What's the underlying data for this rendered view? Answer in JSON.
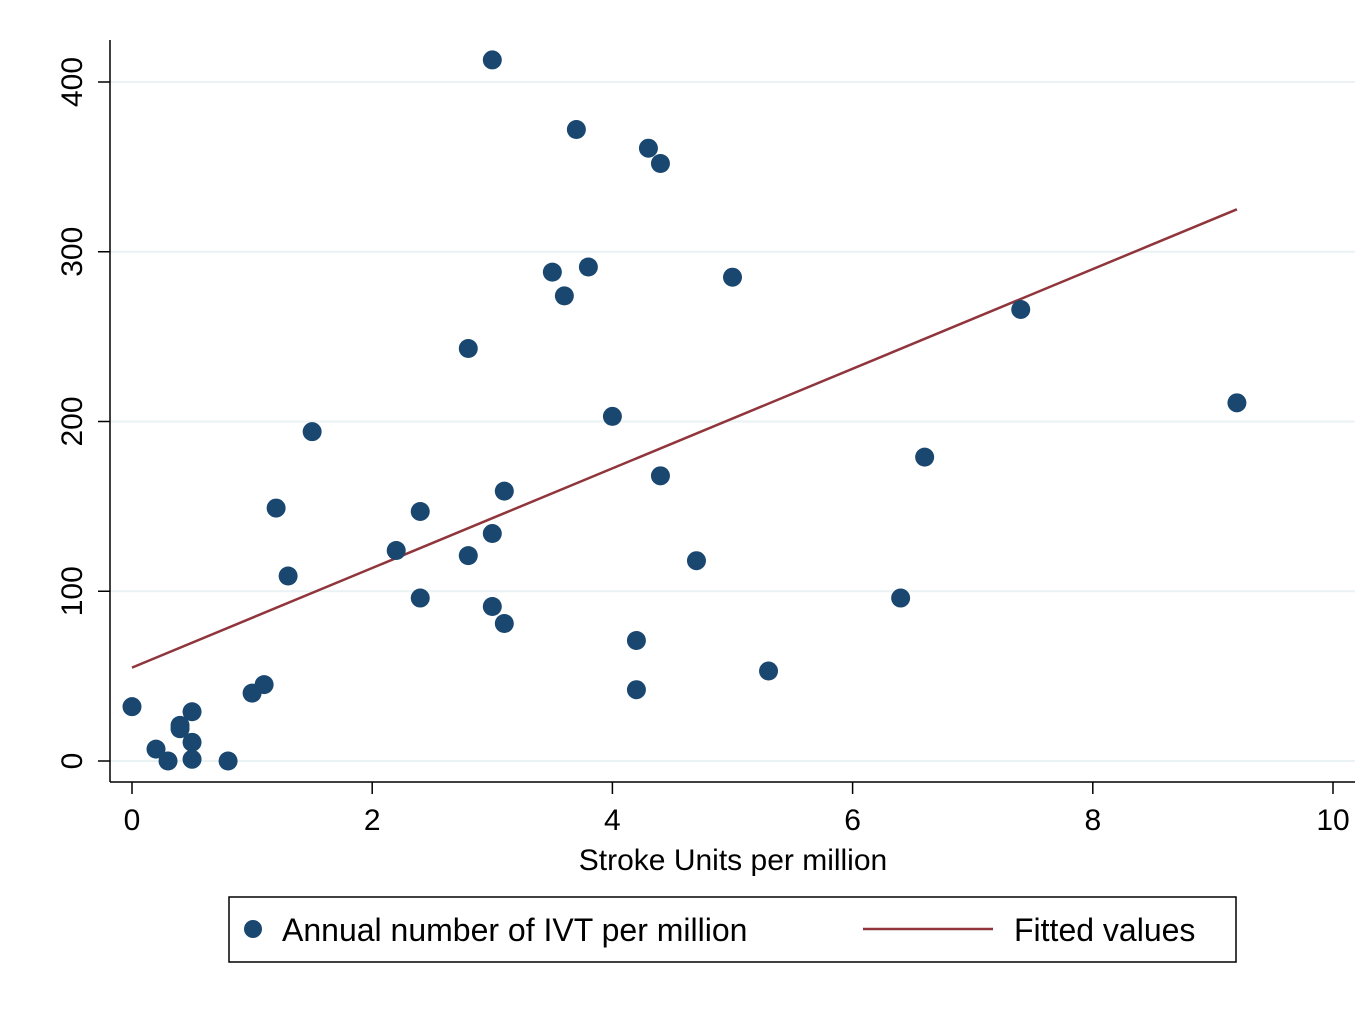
{
  "chart_data": {
    "type": "scatter",
    "xlabel": "Stroke Units per million",
    "ylabel": "",
    "xlim": [
      0,
      10
    ],
    "ylim": [
      0,
      420
    ],
    "xticks": [
      "0",
      "2",
      "4",
      "6",
      "8",
      "10"
    ],
    "yticks": [
      "0",
      "100",
      "200",
      "300",
      "400"
    ],
    "grid": "horizontal",
    "legend_position": "bottom",
    "colors": {
      "points": "#1a476f",
      "fit": "#90353b",
      "grid": "#eaf2f3"
    },
    "series": [
      {
        "name": "Annual number of IVT per million",
        "kind": "scatter",
        "points": [
          [
            0.0,
            32
          ],
          [
            0.2,
            7
          ],
          [
            0.3,
            0
          ],
          [
            0.4,
            19
          ],
          [
            0.4,
            21
          ],
          [
            0.5,
            29
          ],
          [
            0.5,
            11
          ],
          [
            0.5,
            1
          ],
          [
            0.8,
            0
          ],
          [
            1.0,
            40
          ],
          [
            1.1,
            45
          ],
          [
            1.2,
            149
          ],
          [
            1.3,
            109
          ],
          [
            1.5,
            194
          ],
          [
            2.2,
            124
          ],
          [
            2.4,
            147
          ],
          [
            2.4,
            96
          ],
          [
            2.8,
            243
          ],
          [
            2.8,
            121
          ],
          [
            3.0,
            413
          ],
          [
            3.0,
            134
          ],
          [
            3.0,
            91
          ],
          [
            3.1,
            159
          ],
          [
            3.1,
            81
          ],
          [
            3.5,
            288
          ],
          [
            3.6,
            274
          ],
          [
            3.7,
            372
          ],
          [
            3.8,
            291
          ],
          [
            4.0,
            203
          ],
          [
            4.2,
            71
          ],
          [
            4.2,
            42
          ],
          [
            4.3,
            361
          ],
          [
            4.4,
            352
          ],
          [
            4.4,
            168
          ],
          [
            4.7,
            118
          ],
          [
            5.0,
            285
          ],
          [
            5.3,
            53
          ],
          [
            6.4,
            96
          ],
          [
            6.6,
            179
          ],
          [
            7.4,
            266
          ],
          [
            9.2,
            211
          ]
        ]
      },
      {
        "name": "Fitted values",
        "kind": "line",
        "points": [
          [
            0.0,
            55
          ],
          [
            9.2,
            325
          ]
        ]
      }
    ]
  }
}
